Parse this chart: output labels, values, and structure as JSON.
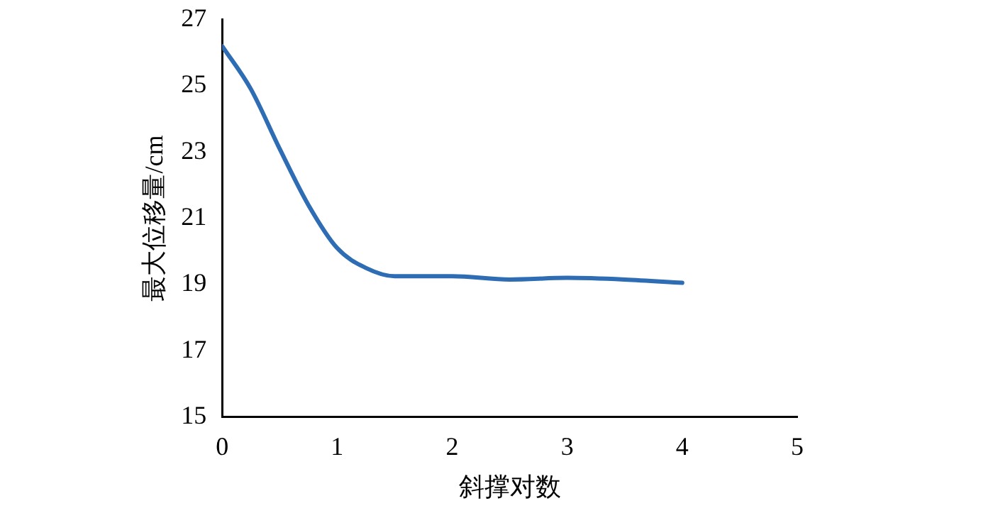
{
  "chart_data": {
    "type": "line",
    "xlabel": "斜撑对数",
    "ylabel": "最大位移量/cm",
    "x": [
      0,
      0.25,
      0.5,
      0.75,
      1,
      1.25,
      1.5,
      2,
      2.5,
      3,
      3.5,
      4
    ],
    "series": [
      {
        "color": "#2e6db4",
        "values": [
          26.2,
          24.9,
          23.1,
          21.4,
          20.1,
          19.5,
          19.25,
          19.25,
          19.15,
          19.2,
          19.15,
          19.05
        ]
      }
    ],
    "xlim": [
      0,
      5
    ],
    "xticks": [
      0,
      1,
      2,
      3,
      4,
      5
    ],
    "ylim": [
      15,
      27
    ],
    "yticks": [
      15,
      17,
      19,
      21,
      23,
      25,
      27
    ],
    "grid": false,
    "legend": false,
    "marker": "none",
    "line_style": "solid"
  }
}
